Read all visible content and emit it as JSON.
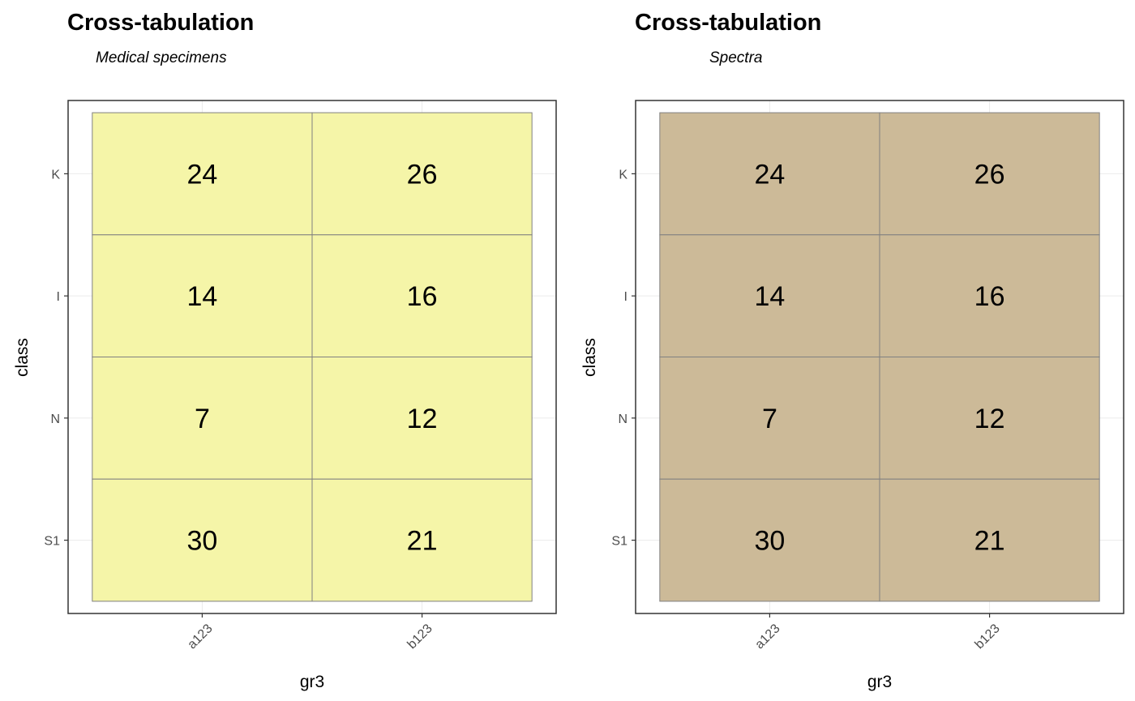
{
  "chart_data": [
    {
      "type": "heatmap",
      "title": "Cross-tabulation",
      "subtitle": "Medical specimens",
      "xlabel": "gr3",
      "ylabel": "class",
      "x_categories": [
        "a123",
        "b123"
      ],
      "y_categories": [
        "K",
        "I",
        "N",
        "S1"
      ],
      "values": [
        [
          24,
          26
        ],
        [
          14,
          16
        ],
        [
          7,
          12
        ],
        [
          30,
          21
        ]
      ],
      "fill_color": "#F5F5A8",
      "border_color": "#808080",
      "grid": true
    },
    {
      "type": "heatmap",
      "title": "Cross-tabulation",
      "subtitle": "Spectra",
      "xlabel": "gr3",
      "ylabel": "class",
      "x_categories": [
        "a123",
        "b123"
      ],
      "y_categories": [
        "K",
        "I",
        "N",
        "S1"
      ],
      "values": [
        [
          24,
          26
        ],
        [
          14,
          16
        ],
        [
          7,
          12
        ],
        [
          30,
          21
        ]
      ],
      "fill_color": "#CCBA98",
      "border_color": "#808080",
      "grid": true
    }
  ]
}
